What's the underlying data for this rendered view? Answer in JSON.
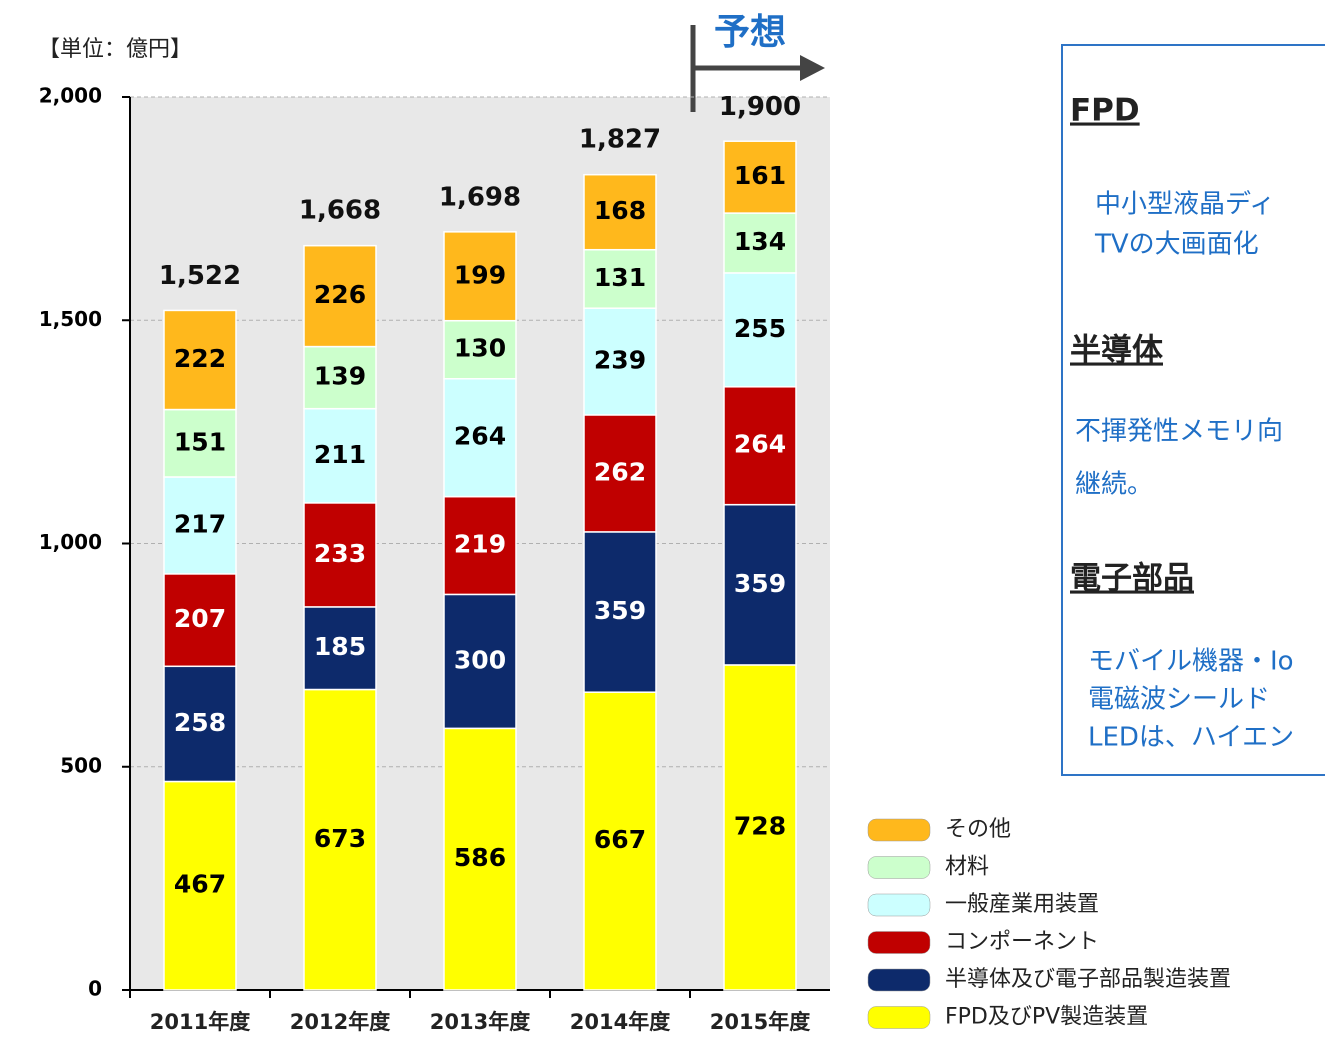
{
  "chart_data": {
    "type": "stacked_bar",
    "unit_label": "【単位：億円】",
    "annotation": "予想",
    "categories": [
      "2011年度",
      "2012年度",
      "2013年度",
      "2014年度",
      "2015年度"
    ],
    "series": [
      {
        "name": "FPD及びPV製造装置",
        "color": "#ffff00",
        "label_color": "#000000",
        "values": [
          467,
          673,
          586,
          667,
          728
        ]
      },
      {
        "name": "半導体及び電子部品製造装置",
        "color": "#0d2a6b",
        "label_color": "#ffffff",
        "values": [
          258,
          185,
          300,
          359,
          359
        ]
      },
      {
        "name": "コンポーネント",
        "color": "#c00000",
        "label_color": "#ffffff",
        "values": [
          207,
          233,
          219,
          262,
          264
        ]
      },
      {
        "name": "一般産業用装置",
        "color": "#ccffff",
        "label_color": "#000000",
        "values": [
          217,
          211,
          264,
          239,
          255
        ]
      },
      {
        "name": "材料",
        "color": "#ccffcc",
        "label_color": "#000000",
        "values": [
          151,
          139,
          130,
          131,
          134
        ]
      },
      {
        "name": "その他",
        "color": "#ffb81c",
        "label_color": "#000000",
        "values": [
          222,
          226,
          199,
          168,
          161
        ]
      }
    ],
    "totals": [
      1522,
      1668,
      1698,
      1827,
      1900
    ],
    "total_labels": [
      "1,522",
      "1,668",
      "1,698",
      "1,827",
      "1,900"
    ],
    "ylim": [
      0,
      2000
    ],
    "yticks": [
      0,
      500,
      {
        "value": 1000,
        "label": "1,000"
      },
      {
        "value": 1500,
        "label": "1,500"
      },
      {
        "value": 2000,
        "label": "2,000"
      }
    ],
    "grid": true
  },
  "sidebar": {
    "sections": [
      {
        "heading": "FPD",
        "lines": [
          "中小型液晶ディ",
          "TVの大画面化"
        ]
      },
      {
        "heading": "半導体",
        "lines": [
          "不揮発性メモリ向",
          "継続。"
        ]
      },
      {
        "heading": "電子部品",
        "lines": [
          "モバイル機器・Io",
          "電磁波シールド",
          "LEDは、ハイエン"
        ]
      }
    ]
  }
}
